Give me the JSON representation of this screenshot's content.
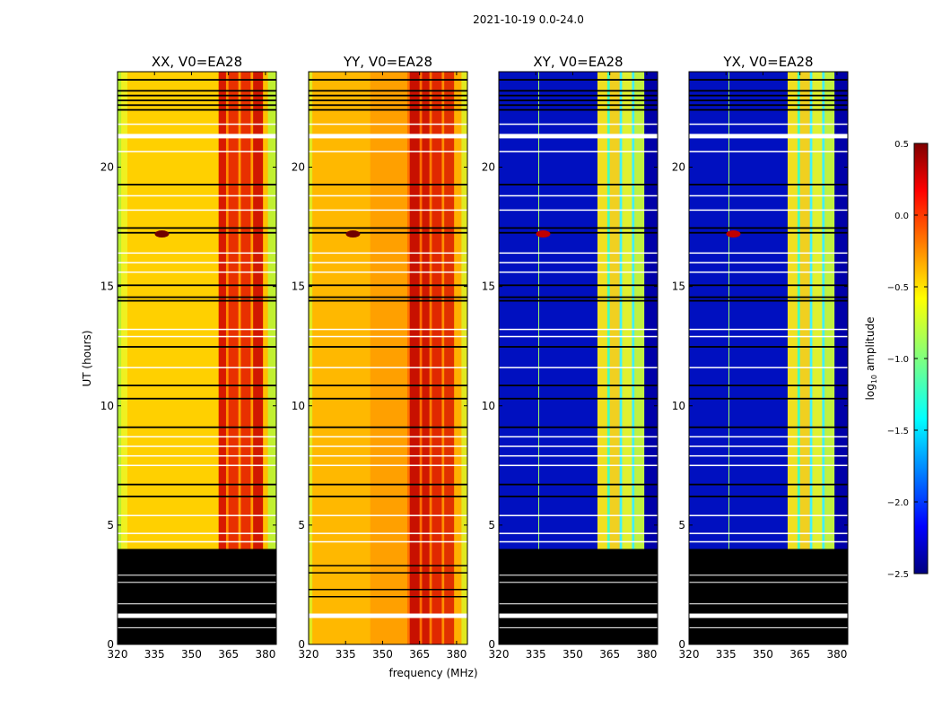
{
  "chart_data": {
    "type": "heatmap",
    "title": "2021-10-19 0.0-24.0",
    "xlabel": "frequency (MHz)",
    "ylabel": "UT (hours)",
    "xlim": [
      320,
      384.4
    ],
    "ylim": [
      0,
      24
    ],
    "xticks": [
      "320",
      "335",
      "350",
      "365",
      "380"
    ],
    "xtick_values": [
      320,
      335,
      350,
      365,
      380
    ],
    "yticks": [
      "0",
      "5",
      "10",
      "15",
      "20"
    ],
    "ytick_values": [
      0,
      5,
      10,
      15,
      20
    ],
    "colorbar": {
      "label_main": "log",
      "label_sub": "10",
      "label_rest": " amplitude",
      "range": [
        -2.5,
        0.5
      ],
      "ticks": [
        "0.5",
        "0.0",
        "−0.5",
        "−1.0",
        "−1.5",
        "−2.0",
        "−2.5"
      ],
      "tick_values": [
        0.5,
        0.0,
        -0.5,
        -1.0,
        -1.5,
        -2.0,
        -2.5
      ],
      "colormap": "jet"
    },
    "panels": [
      {
        "title": "XX, V0=EA28",
        "flag_low": [
          0,
          4
        ],
        "bands": [
          [
            320,
            321.5,
            "#b8f030"
          ],
          [
            321.5,
            324,
            "#f0f020"
          ],
          [
            324,
            361,
            "#ffd000"
          ],
          [
            361,
            364,
            "#d81800"
          ],
          [
            364,
            365,
            "#ff9000"
          ],
          [
            365,
            369,
            "#e83000"
          ],
          [
            369,
            370,
            "#ffa000"
          ],
          [
            370,
            374,
            "#e83000"
          ],
          [
            374,
            375,
            "#ffa000"
          ],
          [
            375,
            379,
            "#d01800"
          ],
          [
            379,
            381,
            "#ffc000"
          ],
          [
            381,
            384.4,
            "#c0f030"
          ]
        ],
        "vlines": []
      },
      {
        "title": "YY, V0=EA28",
        "flag_low": null,
        "bands": [
          [
            320,
            321.5,
            "#e0e820"
          ],
          [
            321.5,
            345,
            "#ffb800"
          ],
          [
            345,
            360,
            "#ffa000"
          ],
          [
            360,
            361,
            "#ff7000"
          ],
          [
            361,
            365,
            "#c81000"
          ],
          [
            365,
            366,
            "#ff7000"
          ],
          [
            366,
            369,
            "#d01800"
          ],
          [
            369,
            370,
            "#ff8000"
          ],
          [
            370,
            374,
            "#e02800"
          ],
          [
            374,
            375,
            "#ff9000"
          ],
          [
            375,
            379,
            "#e03000"
          ],
          [
            379,
            382,
            "#ffb000"
          ],
          [
            382,
            384.4,
            "#e0e820"
          ]
        ],
        "vlines": []
      },
      {
        "title": "XY, V0=EA28",
        "flag_low": [
          0,
          4
        ],
        "bands": [
          [
            320,
            360,
            "#0010c0"
          ],
          [
            360,
            364,
            "#f0e020"
          ],
          [
            364,
            365,
            "#40ffc0"
          ],
          [
            365,
            369,
            "#f0d020"
          ],
          [
            369,
            370,
            "#40f0ff"
          ],
          [
            370,
            374,
            "#e0f030"
          ],
          [
            374,
            375,
            "#40f0ff"
          ],
          [
            375,
            379,
            "#c0f040"
          ],
          [
            379,
            384.4,
            "#0000a8"
          ]
        ],
        "vlines": [
          [
            336,
            "#a0ff60"
          ]
        ]
      },
      {
        "title": "YX, V0=EA28",
        "flag_low": [
          0,
          4
        ],
        "bands": [
          [
            320,
            360,
            "#0010c0"
          ],
          [
            360,
            364,
            "#f0e020"
          ],
          [
            364,
            365,
            "#40ffc0"
          ],
          [
            365,
            369,
            "#f0d020"
          ],
          [
            369,
            370,
            "#40f0ff"
          ],
          [
            370,
            374,
            "#e0f030"
          ],
          [
            374,
            375,
            "#40f0ff"
          ],
          [
            375,
            379,
            "#c0f040"
          ],
          [
            379,
            384.4,
            "#0000a8"
          ]
        ],
        "vlines": [
          [
            336,
            "#a0ff60"
          ]
        ]
      }
    ],
    "black_lines_hours": [
      23.66,
      23.2,
      23.0,
      22.8,
      22.6,
      22.4,
      19.27,
      17.45,
      17.25,
      15.05,
      14.55,
      14.4,
      12.47,
      10.85,
      10.3,
      9.1,
      6.7,
      6.2
    ],
    "white_lines_hours": [
      21.8,
      20.65,
      18.8,
      18.2,
      16.4,
      16.0,
      15.6,
      13.2,
      12.9,
      11.6,
      8.7,
      8.3,
      7.9,
      7.5,
      5.4,
      4.65,
      4.3
    ],
    "thick_white_hours": [
      21.3
    ],
    "low_white_hours": [
      1.2
    ]
  }
}
